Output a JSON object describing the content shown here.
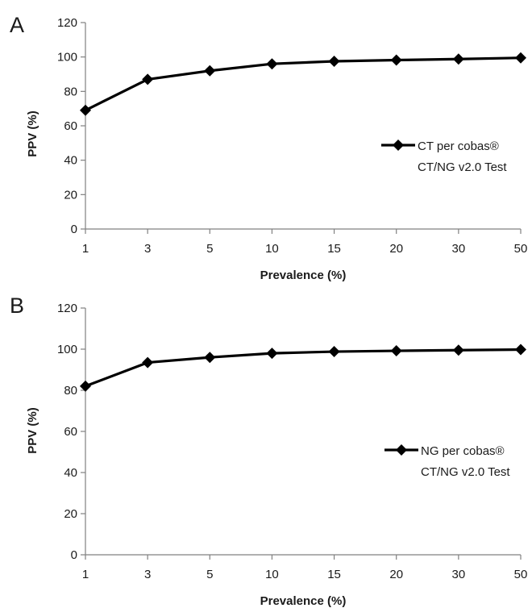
{
  "chart_data": [
    {
      "type": "line",
      "panel_label": "A",
      "xlabel": "Prevalence (%)",
      "ylabel": "PPV (%)",
      "categories": [
        "1",
        "3",
        "5",
        "10",
        "15",
        "20",
        "30",
        "50"
      ],
      "ylim": [
        0,
        120
      ],
      "yticks": [
        "0",
        "20",
        "40",
        "60",
        "80",
        "100",
        "120"
      ],
      "grid": false,
      "legend_position": "right",
      "series": [
        {
          "name": "CT per cobas® CT/NG v2.0 Test",
          "legend_lines": [
            "CT per cobas®",
            "CT/NG v2.0 Test"
          ],
          "values": [
            69,
            87,
            92,
            96,
            97.5,
            98.2,
            98.8,
            99.5
          ],
          "color": "#000000",
          "marker": "diamond"
        }
      ]
    },
    {
      "type": "line",
      "panel_label": "B",
      "xlabel": "Prevalence (%)",
      "ylabel": "PPV (%)",
      "categories": [
        "1",
        "3",
        "5",
        "10",
        "15",
        "20",
        "30",
        "50"
      ],
      "ylim": [
        0,
        120
      ],
      "yticks": [
        "0",
        "20",
        "40",
        "60",
        "80",
        "100",
        "120"
      ],
      "grid": false,
      "legend_position": "right",
      "series": [
        {
          "name": "NG  per cobas® CT/NG v2.0 Test",
          "legend_lines": [
            "NG  per cobas®",
            "CT/NG v2.0 Test"
          ],
          "values": [
            82,
            93.5,
            96,
            98,
            98.8,
            99.2,
            99.5,
            99.8
          ],
          "color": "#000000",
          "marker": "diamond"
        }
      ]
    }
  ]
}
